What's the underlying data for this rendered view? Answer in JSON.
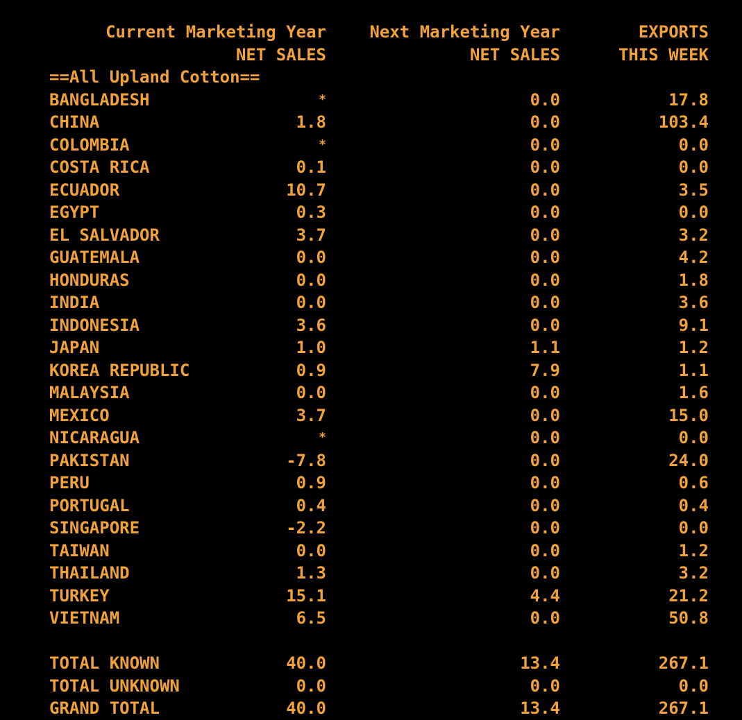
{
  "headers": {
    "current_line1": "Current Marketing Year",
    "current_line2": "NET SALES",
    "next_line1": "Next Marketing Year",
    "next_line2": "NET SALES",
    "exports_line1": "EXPORTS",
    "exports_line2": "THIS WEEK"
  },
  "section_title": "==All Upland Cotton==",
  "rows": [
    {
      "country": "BANGLADESH",
      "current": "*",
      "next": "0.0",
      "exports": "17.8"
    },
    {
      "country": "CHINA",
      "current": "1.8",
      "next": "0.0",
      "exports": "103.4"
    },
    {
      "country": "COLOMBIA",
      "current": "*",
      "next": "0.0",
      "exports": "0.0"
    },
    {
      "country": "COSTA RICA",
      "current": "0.1",
      "next": "0.0",
      "exports": "0.0"
    },
    {
      "country": "ECUADOR",
      "current": "10.7",
      "next": "0.0",
      "exports": "3.5"
    },
    {
      "country": "EGYPT",
      "current": "0.3",
      "next": "0.0",
      "exports": "0.0"
    },
    {
      "country": "EL SALVADOR",
      "current": "3.7",
      "next": "0.0",
      "exports": "3.2"
    },
    {
      "country": "GUATEMALA",
      "current": "0.0",
      "next": "0.0",
      "exports": "4.2"
    },
    {
      "country": "HONDURAS",
      "current": "0.0",
      "next": "0.0",
      "exports": "1.8"
    },
    {
      "country": "INDIA",
      "current": "0.0",
      "next": "0.0",
      "exports": "3.6"
    },
    {
      "country": "INDONESIA",
      "current": "3.6",
      "next": "0.0",
      "exports": "9.1"
    },
    {
      "country": "JAPAN",
      "current": "1.0",
      "next": "1.1",
      "exports": "1.2"
    },
    {
      "country": "KOREA REPUBLIC",
      "current": "0.9",
      "next": "7.9",
      "exports": "1.1"
    },
    {
      "country": "MALAYSIA",
      "current": "0.0",
      "next": "0.0",
      "exports": "1.6"
    },
    {
      "country": "MEXICO",
      "current": "3.7",
      "next": "0.0",
      "exports": "15.0"
    },
    {
      "country": "NICARAGUA",
      "current": "*",
      "next": "0.0",
      "exports": "0.0"
    },
    {
      "country": "PAKISTAN",
      "current": "-7.8",
      "next": "0.0",
      "exports": "24.0"
    },
    {
      "country": "PERU",
      "current": "0.9",
      "next": "0.0",
      "exports": "0.6"
    },
    {
      "country": "PORTUGAL",
      "current": "0.4",
      "next": "0.0",
      "exports": "0.4"
    },
    {
      "country": "SINGAPORE",
      "current": "-2.2",
      "next": "0.0",
      "exports": "0.0"
    },
    {
      "country": "TAIWAN",
      "current": "0.0",
      "next": "0.0",
      "exports": "1.2"
    },
    {
      "country": "THAILAND",
      "current": "1.3",
      "next": "0.0",
      "exports": "3.2"
    },
    {
      "country": "TURKEY",
      "current": "15.1",
      "next": "4.4",
      "exports": "21.2"
    },
    {
      "country": "VIETNAM",
      "current": "6.5",
      "next": "0.0",
      "exports": "50.8"
    }
  ],
  "totals": [
    {
      "label": "TOTAL KNOWN",
      "current": "40.0",
      "next": "13.4",
      "exports": "267.1"
    },
    {
      "label": "TOTAL UNKNOWN",
      "current": "0.0",
      "next": "0.0",
      "exports": "0.0"
    },
    {
      "label": "GRAND TOTAL",
      "current": "40.0",
      "next": "13.4",
      "exports": "267.1"
    }
  ],
  "colors": {
    "background": "#000000",
    "text": "#f2a23a"
  }
}
